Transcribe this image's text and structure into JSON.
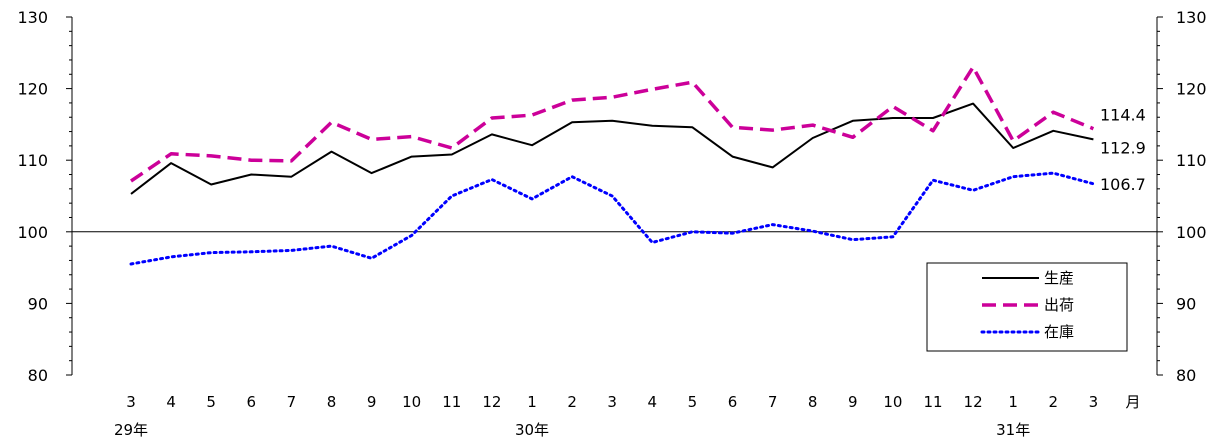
{
  "chart_data": {
    "type": "line",
    "categories": [
      "3",
      "4",
      "5",
      "6",
      "7",
      "8",
      "9",
      "10",
      "11",
      "12",
      "1",
      "2",
      "3",
      "4",
      "5",
      "6",
      "7",
      "8",
      "9",
      "10",
      "11",
      "12",
      "1",
      "2",
      "3"
    ],
    "month_unit": "月",
    "year_labels": [
      {
        "index": 0,
        "label": "29年"
      },
      {
        "index": 10,
        "label": "30年"
      },
      {
        "index": 22,
        "label": "31年"
      }
    ],
    "ylim": [
      80,
      130
    ],
    "yticks": [
      "80",
      "90",
      "100",
      "110",
      "120",
      "130"
    ],
    "reference_line": 100,
    "grid": false,
    "legend_position": "bottom-right",
    "series": [
      {
        "name": "生産",
        "color": "#000000",
        "style": "solid",
        "values": [
          105.3,
          109.6,
          106.6,
          108.0,
          107.7,
          111.2,
          108.2,
          110.5,
          110.8,
          113.6,
          112.1,
          115.3,
          115.5,
          114.8,
          114.6,
          110.5,
          109.0,
          113.1,
          115.5,
          115.9,
          115.9,
          117.9,
          111.7,
          114.1,
          112.9
        ],
        "end_label": "112.9"
      },
      {
        "name": "出荷",
        "color": "#cc0099",
        "style": "dashed",
        "values": [
          107.1,
          110.9,
          110.6,
          110.0,
          109.9,
          115.3,
          112.9,
          113.3,
          111.7,
          115.9,
          116.3,
          118.4,
          118.8,
          119.9,
          120.9,
          114.6,
          114.2,
          114.9,
          113.2,
          117.5,
          114.1,
          123.0,
          112.7,
          116.7,
          114.4
        ],
        "end_label": "114.4"
      },
      {
        "name": "在庫",
        "color": "#0000ff",
        "style": "dotted",
        "values": [
          95.5,
          96.5,
          97.1,
          97.2,
          97.4,
          98.0,
          96.3,
          99.5,
          105.0,
          107.3,
          104.6,
          107.7,
          105.0,
          98.5,
          100.0,
          99.8,
          101.0,
          100.1,
          98.9,
          99.3,
          107.2,
          105.8,
          107.7,
          108.2,
          106.7
        ],
        "end_label": "106.7"
      }
    ]
  }
}
